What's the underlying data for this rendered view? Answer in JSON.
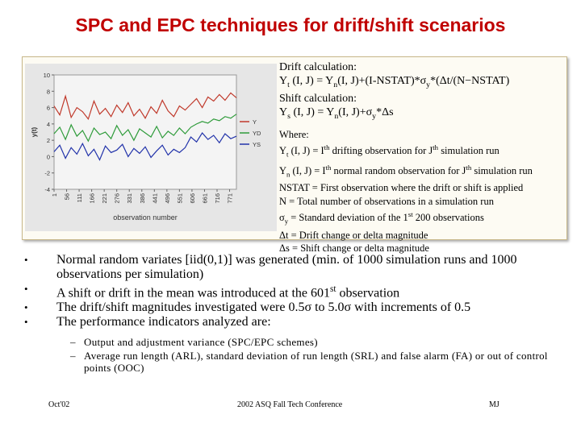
{
  "title": "SPC and EPC techniques for drift/shift scenarios",
  "chart_data": {
    "type": "line",
    "y_label": "y(t)",
    "x_label": "observation number",
    "x": [
      1,
      26,
      51,
      76,
      101,
      126,
      151,
      176,
      201,
      226,
      251,
      276,
      301,
      326,
      351,
      376,
      401,
      426,
      451,
      476,
      501,
      526,
      551,
      576,
      601,
      626,
      651,
      676,
      701,
      726,
      751,
      776,
      801
    ],
    "xlim": [
      1,
      801
    ],
    "xticks": [
      1,
      56,
      111,
      166,
      221,
      276,
      331,
      386,
      441,
      496,
      551,
      606,
      661,
      716,
      771
    ],
    "ylim": [
      -4,
      10
    ],
    "yticks": [
      -4,
      -2,
      0,
      2,
      4,
      6,
      8,
      10
    ],
    "series": [
      {
        "name": "Y",
        "color": "#c0392b",
        "values": [
          6.2,
          5.1,
          7.4,
          4.8,
          6.0,
          5.5,
          4.6,
          6.8,
          5.2,
          5.9,
          4.9,
          6.3,
          5.4,
          6.6,
          5.0,
          5.8,
          4.7,
          6.1,
          5.3,
          6.9,
          5.6,
          4.9,
          6.2,
          5.7,
          6.4,
          7.1,
          6.0,
          7.3,
          6.8,
          7.6,
          6.9,
          7.8,
          7.2
        ]
      },
      {
        "name": "YD",
        "color": "#2e9b3a",
        "values": [
          2.8,
          3.6,
          2.1,
          3.9,
          2.5,
          3.2,
          1.9,
          3.5,
          2.7,
          3.0,
          2.2,
          3.8,
          2.6,
          3.3,
          2.0,
          3.4,
          2.9,
          2.4,
          3.7,
          2.3,
          3.1,
          2.6,
          3.5,
          2.8,
          3.6,
          4.0,
          4.3,
          4.1,
          4.6,
          4.4,
          4.9,
          4.7,
          5.2
        ]
      },
      {
        "name": "YS",
        "color": "#2233aa",
        "values": [
          0.6,
          1.4,
          -0.2,
          1.1,
          0.3,
          1.6,
          0.1,
          0.9,
          -0.4,
          1.3,
          0.5,
          0.8,
          1.5,
          0.0,
          1.0,
          0.4,
          1.2,
          -0.1,
          0.7,
          1.4,
          0.2,
          0.9,
          0.5,
          1.1,
          2.4,
          1.8,
          2.9,
          2.1,
          2.6,
          1.7,
          2.8,
          2.2,
          2.5
        ]
      }
    ]
  },
  "formulas": {
    "drift_label": "Drift calculation:",
    "drift": [
      "Y",
      "t",
      " (I, J) = Y",
      "n",
      "(I, J)+(I-NSTAT)*σ",
      "y",
      "*(Δt/(N−NSTAT)"
    ],
    "shift_label": "Shift calculation:",
    "shift": [
      "Y",
      "s",
      " (I, J) = Y",
      "n",
      "(I, J)+σ",
      "y",
      "*Δs"
    ],
    "where": "Where:",
    "def1": [
      "Y",
      "t",
      " (I, J) = I",
      "th",
      " drifting observation for J",
      "th",
      " simulation run"
    ],
    "def2": [
      "Y",
      "n",
      " (I, J) = I",
      "th",
      " normal random observation for J",
      "th",
      " simulation run"
    ],
    "def3": "NSTAT = First observation where the drift or shift is applied",
    "def4": "N = Total number of observations in a simulation run",
    "def5": [
      "σ",
      "y",
      " = Standard deviation of the 1",
      "st",
      " 200 observations"
    ],
    "def6": "Δt = Drift change or delta magnitude",
    "def7": "Δs = Shift change or delta magnitude"
  },
  "bullets": {
    "b1": "Normal random variates [iid(0,1)] was generated (min. of 1000 simulation runs and 1000 observations per simulation)",
    "b2": [
      "A shift or drift in the mean was introduced at the 601",
      "st",
      " observation"
    ],
    "b3": "The drift/shift magnitudes investigated were 0.5σ to 5.0σ with increments of 0.5",
    "b4": "The performance indicators analyzed are:",
    "sub": [
      "Output and adjustment variance (SPC/EPC schemes)",
      "Average run length (ARL), standard deviation of run length (SRL) and false alarm (FA) or out of control points (OOC)"
    ]
  },
  "footer": {
    "date": "Oct'02",
    "conference": "2002 ASQ Fall Tech Conference",
    "author": "MJ"
  }
}
